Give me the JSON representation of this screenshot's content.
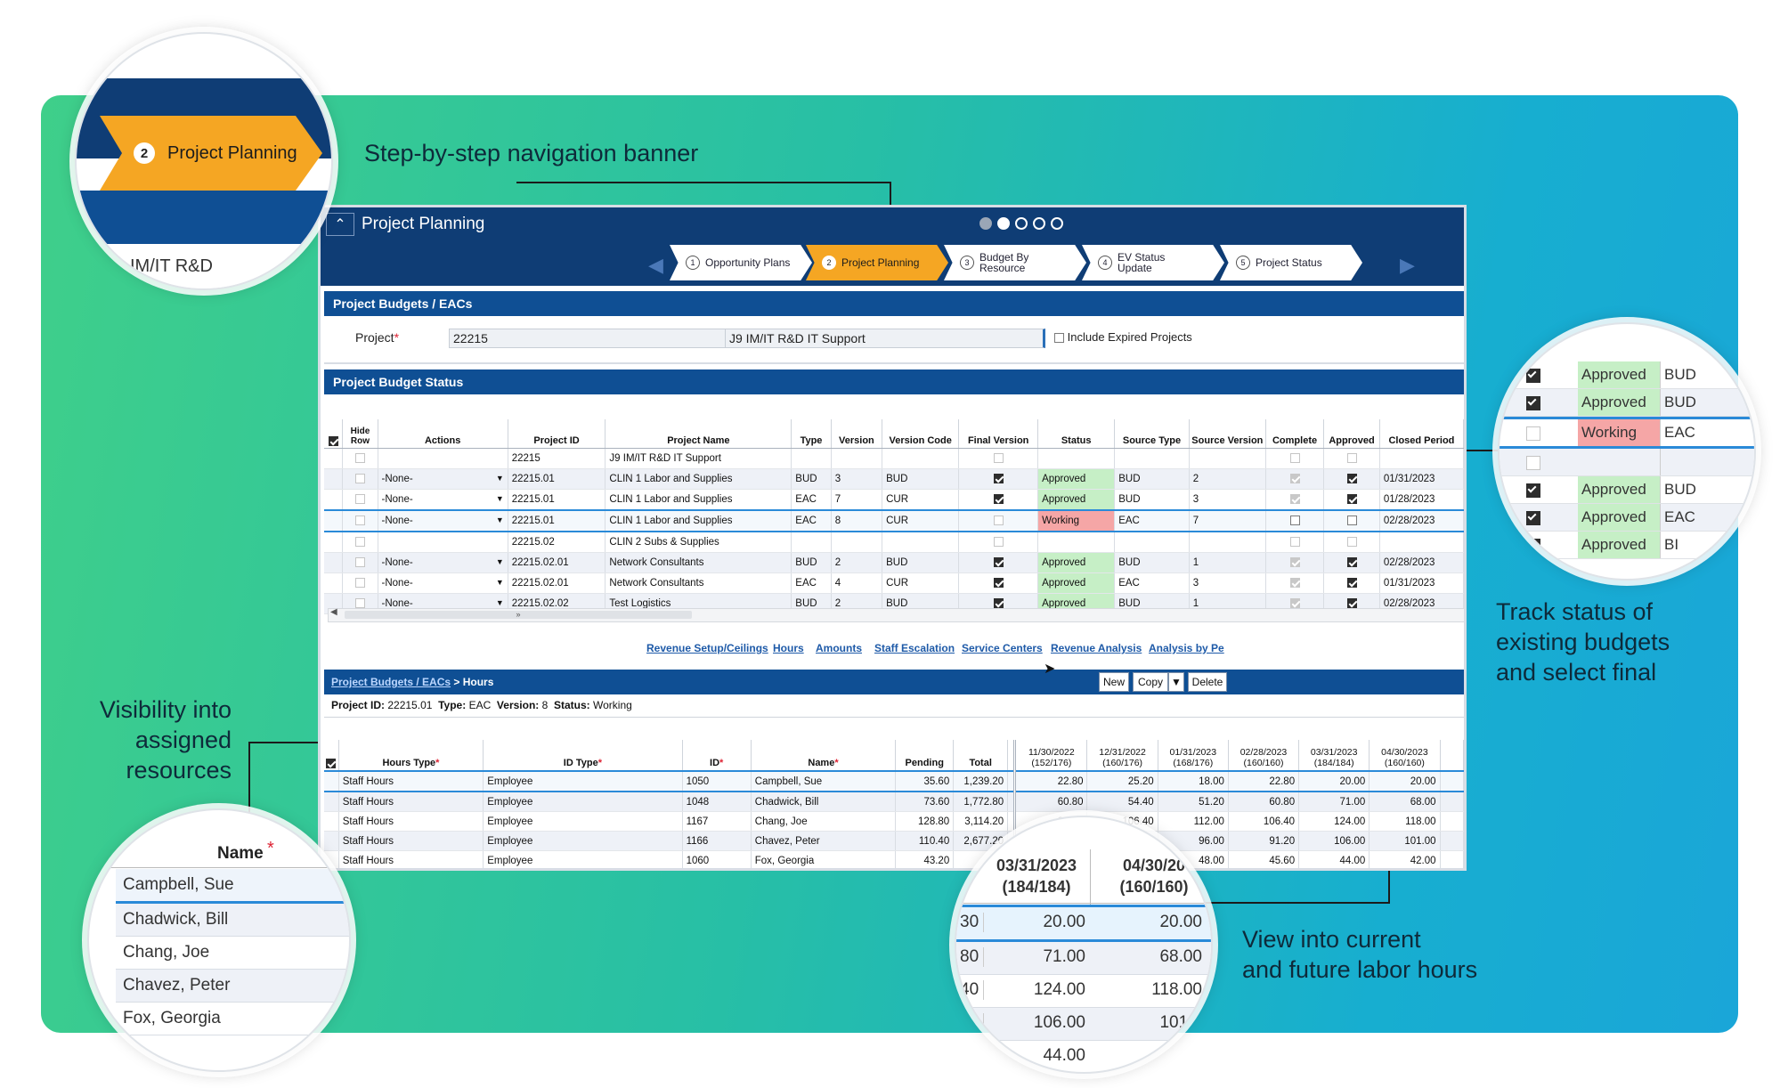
{
  "callouts": {
    "nav_banner": "Step-by-step navigation banner",
    "track_status": [
      "Track status of",
      "existing budgets",
      "and select final"
    ],
    "visibility": [
      "Visibility into",
      "assigned",
      "resources"
    ],
    "labor_hours": [
      "View into current",
      "and future labor hours"
    ]
  },
  "app": {
    "title": "Project Planning",
    "steps": [
      {
        "num": "1",
        "label": "Opportunity Plans"
      },
      {
        "num": "2",
        "label": "Project Planning"
      },
      {
        "num": "3",
        "label": "Budget By Resource"
      },
      {
        "num": "4",
        "label": "EV Status Update"
      },
      {
        "num": "5",
        "label": "Project Status"
      }
    ],
    "budgets_section": "Project Budgets / EACs",
    "project_label": "Project",
    "project_id": "22215",
    "project_name": "J9 IM/IT R&D IT Support",
    "include_expired": "Include Expired Projects",
    "status_section": "Project Budget Status",
    "status_columns": [
      "Hide Row",
      "Actions",
      "Project ID",
      "Project Name",
      "Type",
      "Version",
      "Version Code",
      "Final Version",
      "Status",
      "Source Type",
      "Source Version",
      "Complete",
      "Approved",
      "Closed Period"
    ],
    "status_rows": [
      {
        "action": "",
        "pid": "22215",
        "pname": "J9 IM/IT R&D IT Support",
        "type": "",
        "ver": "",
        "vcode": "",
        "final": "empty",
        "status": "",
        "stype": "",
        "sver": "",
        "complete": "empty",
        "approved": "empty",
        "closed": ""
      },
      {
        "action": "-None-",
        "pid": "22215.01",
        "pname": "CLIN 1 Labor and Supplies",
        "type": "BUD",
        "ver": "3",
        "vcode": "BUD",
        "final": "on",
        "status": "Approved",
        "stype": "BUD",
        "sver": "2",
        "complete": "dim",
        "approved": "on",
        "closed": "01/31/2023"
      },
      {
        "action": "-None-",
        "pid": "22215.01",
        "pname": "CLIN 1 Labor and Supplies",
        "type": "EAC",
        "ver": "7",
        "vcode": "CUR",
        "final": "on",
        "status": "Approved",
        "stype": "BUD",
        "sver": "3",
        "complete": "dim",
        "approved": "on",
        "closed": "01/28/2023"
      },
      {
        "action": "-None-",
        "pid": "22215.01",
        "pname": "CLIN 1 Labor and Supplies",
        "type": "EAC",
        "ver": "8",
        "vcode": "CUR",
        "final": "empty",
        "status": "Working",
        "stype": "EAC",
        "sver": "7",
        "complete": "off",
        "approved": "off",
        "closed": "02/28/2023"
      },
      {
        "action": "",
        "pid": "22215.02",
        "pname": "CLIN 2 Subs & Supplies",
        "type": "",
        "ver": "",
        "vcode": "",
        "final": "empty",
        "status": "",
        "stype": "",
        "sver": "",
        "complete": "empty",
        "approved": "empty",
        "closed": ""
      },
      {
        "action": "-None-",
        "pid": "22215.02.01",
        "pname": "Network Consultants",
        "type": "BUD",
        "ver": "2",
        "vcode": "BUD",
        "final": "on",
        "status": "Approved",
        "stype": "BUD",
        "sver": "1",
        "complete": "dim",
        "approved": "on",
        "closed": "02/28/2023"
      },
      {
        "action": "-None-",
        "pid": "22215.02.01",
        "pname": "Network Consultants",
        "type": "EAC",
        "ver": "4",
        "vcode": "CUR",
        "final": "on",
        "status": "Approved",
        "stype": "EAC",
        "sver": "3",
        "complete": "dim",
        "approved": "on",
        "closed": "01/31/2023"
      },
      {
        "action": "-None-",
        "pid": "22215.02.02",
        "pname": "Test Logistics",
        "type": "BUD",
        "ver": "2",
        "vcode": "BUD",
        "final": "on",
        "status": "Approved",
        "stype": "BUD",
        "sver": "1",
        "complete": "dim",
        "approved": "on",
        "closed": "02/28/2023"
      }
    ],
    "scroll_mark": "»",
    "links": [
      "Revenue Setup/Ceilings",
      "Hours",
      "Amounts",
      "Staff Escalation",
      "Service Centers",
      "Revenue Analysis",
      "Analysis by Pe"
    ],
    "hours_breadcrumb_link": "Project Budgets / EACs",
    "hours_breadcrumb_sep": ">",
    "hours_breadcrumb_current": "Hours",
    "buttons": {
      "new": "New",
      "copy": "Copy",
      "delete": "Delete"
    },
    "info": {
      "project_id_label": "Project ID:",
      "project_id": "22215.01",
      "type_label": "Type:",
      "type": "EAC",
      "version_label": "Version:",
      "version": "8",
      "status_label": "Status:",
      "status": "Working"
    },
    "hours_columns": [
      "Hours Type",
      "ID Type",
      "ID",
      "Name",
      "Pending",
      "Total"
    ],
    "period_columns": [
      {
        "date": "11/30/2022",
        "hrs": "(152/176)"
      },
      {
        "date": "12/31/2022",
        "hrs": "(160/176)"
      },
      {
        "date": "01/31/2023",
        "hrs": "(168/176)"
      },
      {
        "date": "02/28/2023",
        "hrs": "(160/160)"
      },
      {
        "date": "03/31/2023",
        "hrs": "(184/184)"
      },
      {
        "date": "04/30/2023",
        "hrs": "(160/160)"
      }
    ],
    "hours_rows": [
      {
        "htype": "Staff Hours",
        "idtype": "Employee",
        "id": "1050",
        "name": "Campbell, Sue",
        "pending": "35.60",
        "total": "1,239.20",
        "p": [
          "22.80",
          "25.20",
          "18.00",
          "22.80",
          "20.00",
          "20.00"
        ]
      },
      {
        "htype": "Staff Hours",
        "idtype": "Employee",
        "id": "1048",
        "name": "Chadwick, Bill",
        "pending": "73.60",
        "total": "1,772.80",
        "p": [
          "60.80",
          "54.40",
          "51.20",
          "60.80",
          "71.00",
          "68.00"
        ]
      },
      {
        "htype": "Staff Hours",
        "idtype": "Employee",
        "id": "1167",
        "name": "Chang, Joe",
        "pending": "128.80",
        "total": "3,114.20",
        "p": [
          "89.60",
          "106.40",
          "112.00",
          "106.40",
          "124.00",
          "118.00"
        ]
      },
      {
        "htype": "Staff Hours",
        "idtype": "Employee",
        "id": "1166",
        "name": "Chavez, Peter",
        "pending": "110.40",
        "total": "2,677.20",
        "p": [
          "",
          "80",
          "96.00",
          "91.20",
          "106.00",
          "101.00"
        ]
      },
      {
        "htype": "Staff Hours",
        "idtype": "Employee",
        "id": "1060",
        "name": "Fox, Georgia",
        "pending": "43.20",
        "total": "1,1",
        "p": [
          "",
          "",
          "48.00",
          "45.60",
          "44.00",
          "42.00"
        ]
      }
    ]
  },
  "zoom_nav": {
    "num": "2",
    "label": "Project Planning",
    "peek": "IM/IT R&D"
  },
  "zoom_status": {
    "rows": [
      {
        "chk": "on",
        "status": "Approved",
        "src": "BUD"
      },
      {
        "chk": "on",
        "status": "Approved",
        "src": "BUD"
      },
      {
        "chk": "off",
        "status": "Working",
        "src": "EAC"
      },
      {
        "chk": "off",
        "status": "",
        "src": ""
      },
      {
        "chk": "on",
        "status": "Approved",
        "src": "BUD"
      },
      {
        "chk": "on",
        "status": "Approved",
        "src": "EAC"
      },
      {
        "chk": "on",
        "status": "Approved",
        "src": "BI"
      }
    ]
  },
  "zoom_names": {
    "header": "Name",
    "names": [
      "Campbell, Sue",
      "Chadwick, Bill",
      "Chang, Joe",
      "Chavez, Peter",
      "Fox, Georgia"
    ]
  },
  "zoom_hours": {
    "headers": [
      {
        "date": "03/31/2023",
        "hrs": "(184/184)"
      },
      {
        "date": "04/30/20",
        "hrs": "(160/160)"
      }
    ],
    "rows": [
      {
        "edge": "30",
        "a": "20.00",
        "b": "20.00"
      },
      {
        "edge": "80",
        "a": "71.00",
        "b": "68.00"
      },
      {
        "edge": "40",
        "a": "124.00",
        "b": "118.00"
      },
      {
        "edge": "",
        "a": "106.00",
        "b": "101.0"
      },
      {
        "edge": "",
        "a": "44.00",
        "b": ""
      }
    ]
  }
}
